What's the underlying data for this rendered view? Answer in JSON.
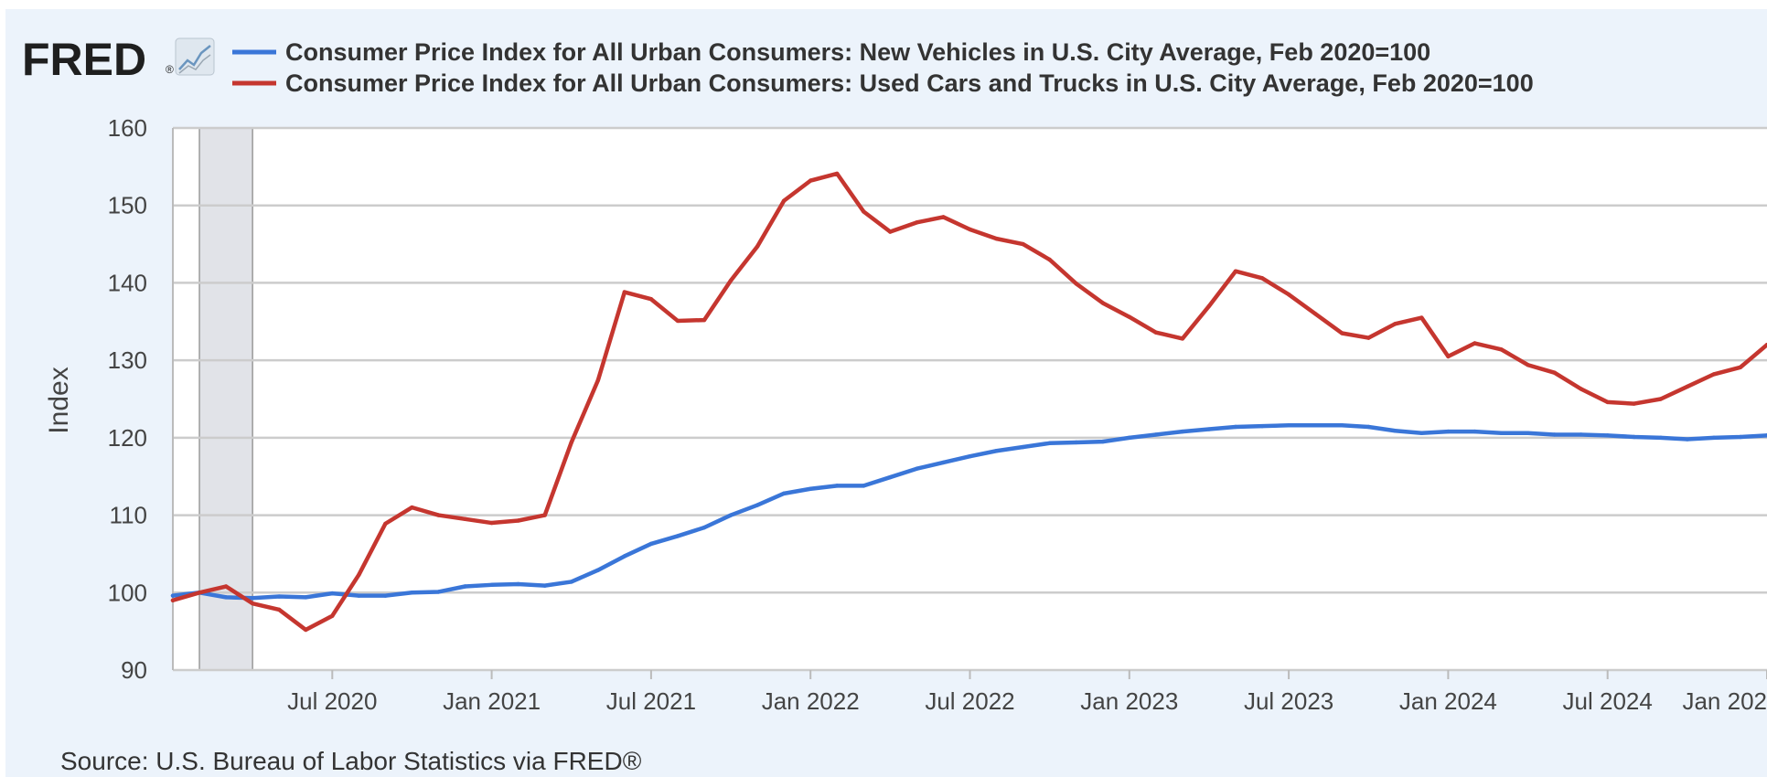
{
  "brand": {
    "logo_text": "FRED",
    "logo_mark": "®",
    "logo_icon": "chart-line-icon"
  },
  "source": "Source: U.S. Bureau of Labor Statistics via FRED®",
  "colors": {
    "background": "#ecf3fb",
    "plot_background": "#ffffff",
    "grid": "#cccccc",
    "recession_shade": "#e1e3e8",
    "new_vehicles": "#3a76d8",
    "used_cars": "#c5362f"
  },
  "chart_data": {
    "type": "line",
    "title": "",
    "xlabel": "",
    "ylabel": "Index",
    "ylim": [
      90,
      160
    ],
    "yticks": [
      "160",
      "150",
      "140",
      "130",
      "120",
      "110",
      "100",
      "90"
    ],
    "xticks": [
      "Jul 2020",
      "Jan 2021",
      "Jul 2021",
      "Jan 2022",
      "Jul 2022",
      "Jan 2023",
      "Jul 2023",
      "Jan 2024",
      "Jul 2024",
      "Jan 202"
    ],
    "xlim": [
      "2020-01",
      "2025-01"
    ],
    "grid": true,
    "legend_position": "top",
    "recession_shading": {
      "start": "2020-02",
      "end": "2020-04"
    },
    "x": [
      "2020-01",
      "2020-02",
      "2020-03",
      "2020-04",
      "2020-05",
      "2020-06",
      "2020-07",
      "2020-08",
      "2020-09",
      "2020-10",
      "2020-11",
      "2020-12",
      "2021-01",
      "2021-02",
      "2021-03",
      "2021-04",
      "2021-05",
      "2021-06",
      "2021-07",
      "2021-08",
      "2021-09",
      "2021-10",
      "2021-11",
      "2021-12",
      "2022-01",
      "2022-02",
      "2022-03",
      "2022-04",
      "2022-05",
      "2022-06",
      "2022-07",
      "2022-08",
      "2022-09",
      "2022-10",
      "2022-11",
      "2022-12",
      "2023-01",
      "2023-02",
      "2023-03",
      "2023-04",
      "2023-05",
      "2023-06",
      "2023-07",
      "2023-08",
      "2023-09",
      "2023-10",
      "2023-11",
      "2023-12",
      "2024-01",
      "2024-02",
      "2024-03",
      "2024-04",
      "2024-05",
      "2024-06",
      "2024-07",
      "2024-08",
      "2024-09",
      "2024-10",
      "2024-11",
      "2024-12",
      "2025-01"
    ],
    "series": [
      {
        "name": "Consumer Price Index for All Urban Consumers: New Vehicles in U.S. City Average, Feb 2020=100",
        "color": "#3a76d8",
        "values": [
          99.6,
          100.0,
          99.4,
          99.3,
          99.5,
          99.4,
          99.9,
          99.6,
          99.6,
          100.0,
          100.1,
          100.8,
          101.0,
          101.1,
          100.9,
          101.4,
          102.9,
          104.7,
          106.3,
          107.3,
          108.4,
          110.0,
          111.3,
          112.8,
          113.4,
          113.8,
          113.8,
          114.9,
          116.0,
          116.8,
          117.6,
          118.3,
          118.8,
          119.3,
          119.4,
          119.5,
          120.0,
          120.4,
          120.8,
          121.1,
          121.4,
          121.5,
          121.6,
          121.6,
          121.6,
          121.4,
          120.9,
          120.6,
          120.8,
          120.8,
          120.6,
          120.6,
          120.4,
          120.4,
          120.3,
          120.1,
          120.0,
          119.8,
          120.0,
          120.1,
          120.3
        ]
      },
      {
        "name": "Consumer Price Index for All Urban Consumers: Used Cars and Trucks in U.S. City Average, Feb 2020=100",
        "color": "#c5362f",
        "values": [
          99.0,
          100.0,
          100.8,
          98.6,
          97.8,
          95.2,
          97.0,
          102.3,
          108.9,
          111.0,
          110.0,
          109.5,
          109.0,
          109.3,
          110.0,
          119.4,
          127.4,
          138.8,
          137.9,
          135.1,
          135.2,
          140.3,
          144.7,
          150.6,
          153.2,
          154.1,
          149.2,
          146.6,
          147.8,
          148.5,
          146.9,
          145.7,
          145.0,
          143.0,
          139.9,
          137.4,
          135.6,
          133.6,
          132.8,
          137.0,
          141.5,
          140.6,
          138.5,
          136.0,
          133.5,
          132.9,
          134.7,
          135.5,
          130.5,
          132.2,
          131.4,
          129.4,
          128.4,
          126.3,
          124.6,
          124.4,
          125.0,
          126.6,
          128.2,
          129.1,
          132.0
        ]
      }
    ]
  }
}
